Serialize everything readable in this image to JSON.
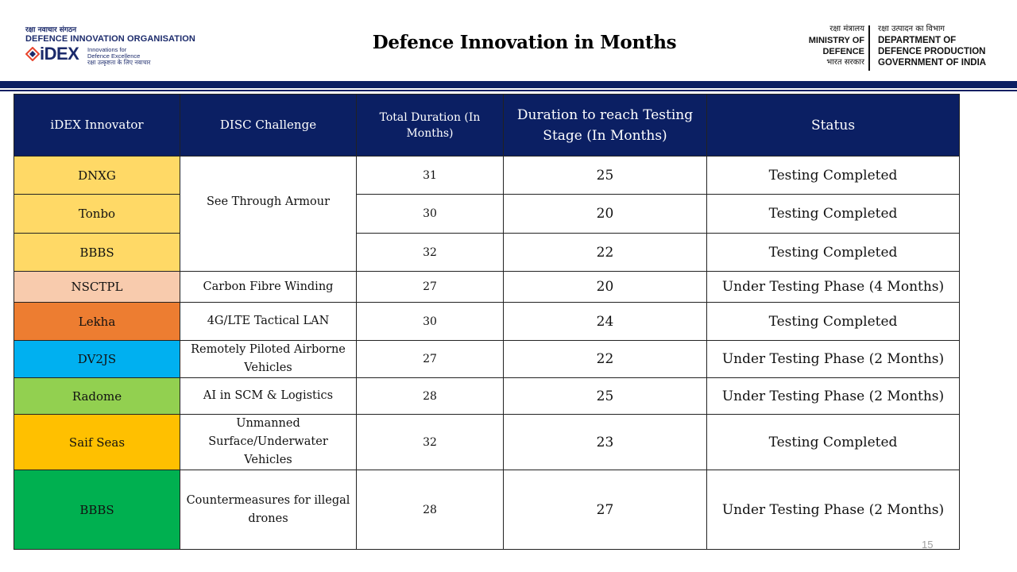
{
  "header": {
    "org_hindi": "रक्षा नवाचार संगठन",
    "org_name": "DEFENCE INNOVATION ORGANISATION",
    "idex_word": "iDEX",
    "idex_tag_line1": "Innovations for",
    "idex_tag_line2": "Defence Excellence",
    "idex_tag_hindi": "रक्षा उत्कृष्टता के लिए नवाचार",
    "title": "Defence Innovation in Months",
    "ministry_hindi_1": "रक्षा मंत्रालय",
    "ministry_line1": "MINISTRY OF",
    "ministry_line2": "DEFENCE",
    "ministry_hindi_2": "भारत सरकार",
    "dept_hindi": "रक्षा उत्पादन का विभाग",
    "dept_line1": "DEPARTMENT OF",
    "dept_line2": "DEFENCE PRODUCTION",
    "dept_line3": "GOVERNMENT OF INDIA"
  },
  "table": {
    "columns": [
      "iDEX Innovator",
      "DISC Challenge",
      "Total Duration (In Months)",
      "Duration to reach Testing Stage (In Months)",
      "Status"
    ],
    "rows": [
      {
        "innovator": "DNXG",
        "color": "#ffd966",
        "challenge": "See Through Armour",
        "total": "31",
        "testing": "25",
        "status": "Testing Completed"
      },
      {
        "innovator": "Tonbo",
        "color": "#ffd966",
        "challenge": "",
        "total": "30",
        "testing": "20",
        "status": "Testing Completed"
      },
      {
        "innovator": "BBBS",
        "color": "#ffd966",
        "challenge": "",
        "total": "32",
        "testing": "22",
        "status": "Testing Completed"
      },
      {
        "innovator": "NSCTPL",
        "color": "#f8cbad",
        "challenge": "Carbon Fibre Winding",
        "total": "27",
        "testing": "20",
        "status": "Under Testing Phase (4 Months)"
      },
      {
        "innovator": "Lekha",
        "color": "#ed7d31",
        "challenge": "4G/LTE Tactical LAN",
        "total": "30",
        "testing": "24",
        "status": "Testing Completed"
      },
      {
        "innovator": "DV2JS",
        "color": "#00b0f0",
        "challenge": "Remotely Piloted Airborne Vehicles",
        "total": "27",
        "testing": "22",
        "status": "Under Testing Phase (2 Months)"
      },
      {
        "innovator": "Radome",
        "color": "#92d050",
        "challenge": "AI in SCM & Logistics",
        "total": "28",
        "testing": "25",
        "status": "Under Testing Phase (2 Months)"
      },
      {
        "innovator": "Saif Seas",
        "color": "#ffc000",
        "challenge": "Unmanned Surface/Underwater Vehicles",
        "total": "32",
        "testing": "23",
        "status": "Testing Completed"
      },
      {
        "innovator": "BBBS",
        "color": "#00b050",
        "challenge": "Countermeasures for illegal drones",
        "total": "28",
        "testing": "27",
        "status": "Under Testing Phase (2 Months)"
      }
    ]
  },
  "colors": {
    "header_band": "#0b1f63",
    "header_text": "#ffffff"
  },
  "page_number": "15"
}
